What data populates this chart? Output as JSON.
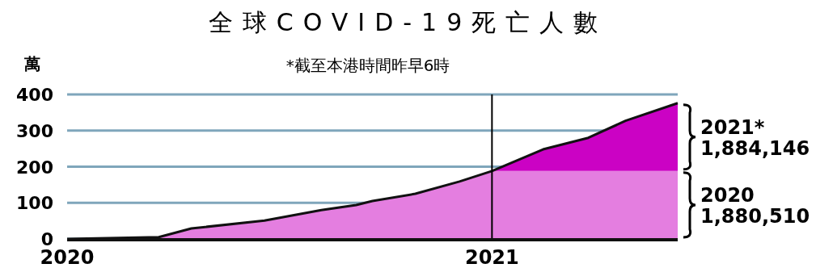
{
  "chart_data": {
    "type": "area",
    "stacked": true,
    "title": "全球COVID-19死亡人數",
    "ylabel": "萬",
    "x": [
      "2020-01-01",
      "2020-03-20",
      "2020-04-17",
      "2020-06-19",
      "2020-08-07",
      "2020-09-06",
      "2020-09-20",
      "2020-10-27",
      "2020-12-04",
      "2021-01-01",
      "2021-02-14",
      "2021-03-25",
      "2021-04-26",
      "2021-06-10"
    ],
    "series": [
      {
        "name": "2020",
        "color": "#e47ee0",
        "values": [
          0,
          5,
          29,
          51,
          80,
          94,
          105,
          125,
          159,
          188,
          188,
          188,
          188,
          188
        ]
      },
      {
        "name": "2021*",
        "color": "#cb02c4",
        "values": [
          null,
          null,
          null,
          null,
          null,
          null,
          null,
          null,
          null,
          0,
          60,
          92,
          139,
          188
        ]
      },
      {
        "type": "line",
        "color": "#111111",
        "values": [
          0,
          5,
          29,
          51,
          80,
          94,
          105,
          125,
          159,
          188,
          248,
          280,
          327,
          376
        ]
      }
    ],
    "xlim": [
      "2020-01-01",
      "2021-06-10"
    ],
    "xticks": [
      {
        "value": "2020-01-01",
        "label": "2020"
      },
      {
        "value": "2021-01-01",
        "label": "2021"
      }
    ],
    "ylim": [
      0,
      400
    ],
    "yticks": [
      0,
      100,
      200,
      300,
      400
    ],
    "grid": "y",
    "legend": false,
    "ref_lines": [
      {
        "axis": "x",
        "value": "2021-01-01",
        "color": "#000000"
      }
    ],
    "annotations": [
      "*截至本港時間昨早6時",
      "1,880,510",
      "1,884,146"
    ]
  }
}
